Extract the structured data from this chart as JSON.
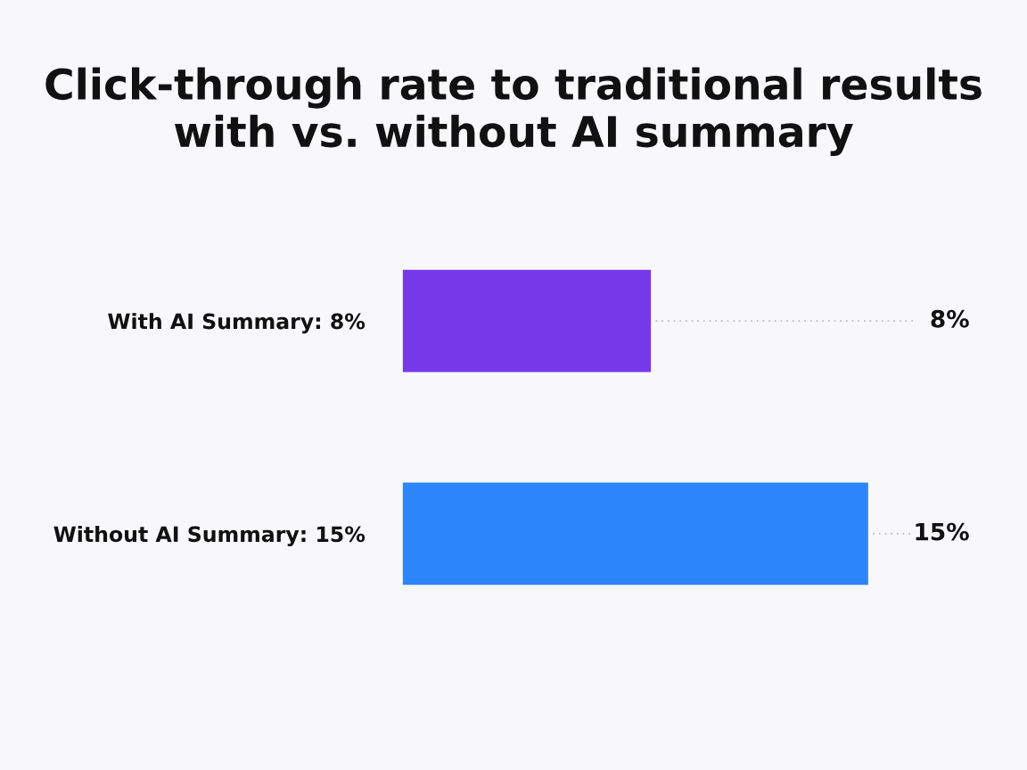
{
  "chart_data": {
    "type": "bar",
    "orientation": "horizontal",
    "title": "Click-through rate to traditional results\nwith vs. without AI summary",
    "categories": [
      "With AI Summary: 8%",
      "Without AI Summary: 15%"
    ],
    "values": [
      8,
      15
    ],
    "colors": [
      "#7539e9",
      "#2d85fa"
    ],
    "value_labels": [
      "8%",
      "15%"
    ],
    "grid": false,
    "legend": false
  }
}
